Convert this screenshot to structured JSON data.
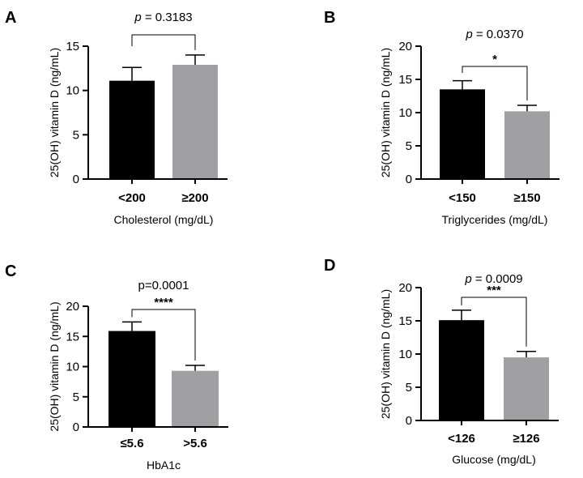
{
  "chart_data": [
    {
      "panel": "A",
      "type": "bar",
      "categories": [
        "<200",
        "≥200"
      ],
      "values": [
        11.1,
        12.9
      ],
      "errors": [
        1.5,
        1.1
      ],
      "colors": [
        "#000000",
        "#a0a0a4"
      ],
      "ylabel": "25(OH) vitamin D (ng/mL)",
      "xlabel": "Cholesterol (mg/dL)",
      "ylim": [
        0,
        15
      ],
      "yticks": [
        0,
        5,
        10,
        15
      ],
      "p_prefix": "p",
      "p_value": " = 0.3183",
      "significance": ""
    },
    {
      "panel": "B",
      "type": "bar",
      "categories": [
        "<150",
        "≥150"
      ],
      "values": [
        13.5,
        10.2
      ],
      "errors": [
        1.3,
        0.9
      ],
      "colors": [
        "#000000",
        "#a0a0a4"
      ],
      "ylabel": "25(OH) vitamin D (ng/mL)",
      "xlabel": "Triglycerides (mg/dL)",
      "ylim": [
        0,
        20
      ],
      "yticks": [
        0,
        5,
        10,
        15,
        20
      ],
      "p_prefix": "p",
      "p_value": " = 0.0370",
      "significance": "*"
    },
    {
      "panel": "C",
      "type": "bar",
      "categories": [
        "≤5.6",
        ">5.6"
      ],
      "values": [
        15.9,
        9.3
      ],
      "errors": [
        1.5,
        0.9
      ],
      "colors": [
        "#000000",
        "#a0a0a4"
      ],
      "ylabel": "25(OH) vitamin D (ng/mL)",
      "xlabel": "HbA1c",
      "ylim": [
        0,
        20
      ],
      "yticks": [
        0,
        5,
        10,
        15,
        20
      ],
      "p_prefix": "",
      "p_value": "p=0.0001",
      "significance": "****"
    },
    {
      "panel": "D",
      "type": "bar",
      "categories": [
        "<126",
        "≥126"
      ],
      "values": [
        15.1,
        9.5
      ],
      "errors": [
        1.5,
        0.9
      ],
      "colors": [
        "#000000",
        "#a0a0a4"
      ],
      "ylabel": "25(OH) vitamin D (ng/mL)",
      "xlabel": "Glucose (mg/dL)",
      "ylim": [
        0,
        20
      ],
      "yticks": [
        0,
        5,
        10,
        15,
        20
      ],
      "p_prefix": "p",
      "p_value": " = 0.0009",
      "significance": "***"
    }
  ]
}
